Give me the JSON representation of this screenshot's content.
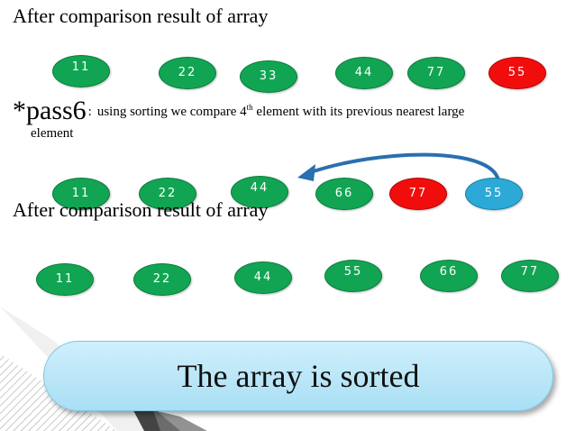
{
  "headings": {
    "first": "After comparison result of array",
    "second": "After comparison result of array"
  },
  "pass": {
    "label": "*pass6",
    "colon": ":",
    "desc_before": "using sorting we compare  4",
    "desc_sup": "th",
    "desc_after": "  element with its previous nearest large",
    "desc_line2": "element"
  },
  "rows": {
    "row1": [
      "11",
      "22",
      "33",
      "44",
      "77",
      "55"
    ],
    "row2": [
      "11",
      "22",
      "44",
      "66",
      "77",
      "55"
    ],
    "row3": [
      "11",
      "22",
      "44",
      "55",
      "66",
      "77"
    ]
  },
  "banner": {
    "text": "The array is sorted"
  },
  "colors": {
    "node_green": "#11a553",
    "node_red": "#f20d0d",
    "node_blue": "#2ca9d6",
    "arrow": "#2a6faf",
    "banner": "#bfe8f8"
  }
}
